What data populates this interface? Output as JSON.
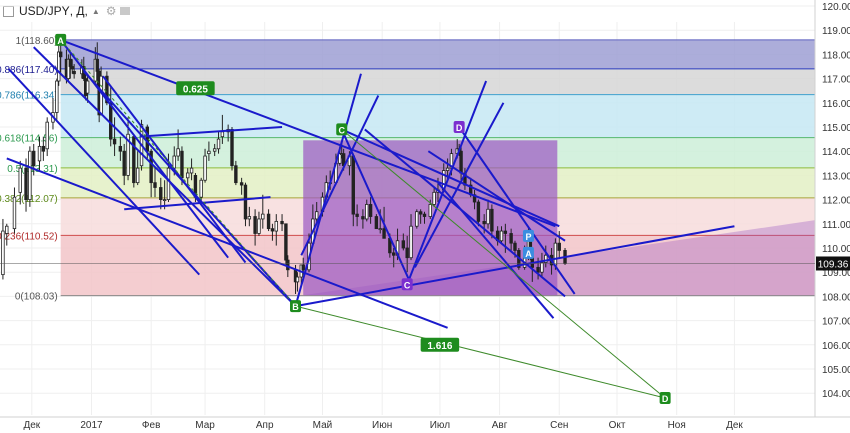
{
  "header": {
    "symbol": "USD/JPY",
    "interval": "Д",
    "icons": [
      "symbol-square-icon",
      "chevron-up-icon",
      "settings-gear-icon",
      "eye-icon"
    ]
  },
  "colors": {
    "fib_0": "#f2c4c8",
    "fib_0236": "#f7dcdc",
    "fib_0382": "#e3f0c4",
    "fib_05": "#ccefd8",
    "fib_0618": "#c6e7f3",
    "fib_0786": "#d6d6d6",
    "fib_0886": "#9d9fd4",
    "purple_zone": "#9c5ac4",
    "channel_lines": "#1a1acb",
    "projection_line": "#3d8a2a",
    "marker_green": "#1e8c1e",
    "marker_purple": "#7b2ecf",
    "marker_blue": "#3b8de0",
    "price_label_bg": "#111111"
  },
  "chart_data": {
    "type": "candlestick",
    "symbol": "USD/JPY",
    "interval": "Д",
    "ylim": [
      103.55,
      120.25
    ],
    "y_ticks": [
      "120.00",
      "119.00",
      "118.00",
      "117.00",
      "116.00",
      "115.00",
      "114.00",
      "113.00",
      "112.00",
      "111.00",
      "110.00",
      "109.00",
      "108.00",
      "107.00",
      "106.00",
      "105.00",
      "104.00"
    ],
    "x_ticks": [
      {
        "label": "Дек",
        "date": "2016-12-01"
      },
      {
        "label": "2017",
        "date": "2017-01-01"
      },
      {
        "label": "Фев",
        "date": "2017-02-01"
      },
      {
        "label": "Мар",
        "date": "2017-03-01"
      },
      {
        "label": "Апр",
        "date": "2017-04-01"
      },
      {
        "label": "Май",
        "date": "2017-05-01"
      },
      {
        "label": "Июн",
        "date": "2017-06-01"
      },
      {
        "label": "Июл",
        "date": "2017-07-01"
      },
      {
        "label": "Авг",
        "date": "2017-08-01"
      },
      {
        "label": "Сен",
        "date": "2017-09-01"
      },
      {
        "label": "Окт",
        "date": "2017-10-01"
      },
      {
        "label": "Ноя",
        "date": "2017-11-01"
      },
      {
        "label": "Дек",
        "date": "2017-12-01"
      }
    ],
    "last_price": "109.36",
    "candles": [
      [
        "2016-11-16",
        108.9,
        111.2,
        108.7,
        110.7
      ],
      [
        "2016-11-18",
        110.6,
        111.0,
        110.1,
        110.9
      ],
      [
        "2016-11-22",
        110.8,
        112.5,
        110.6,
        112.1
      ],
      [
        "2016-11-25",
        112.3,
        113.6,
        111.8,
        113.3
      ],
      [
        "2016-11-28",
        113.3,
        113.7,
        111.5,
        112.0
      ],
      [
        "2016-11-30",
        112.0,
        114.2,
        111.7,
        114.0
      ],
      [
        "2016-12-02",
        114.0,
        114.3,
        113.0,
        113.4
      ],
      [
        "2016-12-05",
        113.6,
        114.6,
        113.2,
        114.2
      ],
      [
        "2016-12-07",
        114.2,
        114.6,
        113.6,
        114.0
      ],
      [
        "2016-12-09",
        114.1,
        115.4,
        113.8,
        115.2
      ],
      [
        "2016-12-12",
        115.2,
        116.2,
        114.9,
        115.6
      ],
      [
        "2016-12-14",
        115.6,
        117.0,
        115.3,
        116.9
      ],
      [
        "2016-12-15",
        116.9,
        118.6,
        116.7,
        118.1
      ],
      [
        "2016-12-16",
        118.1,
        118.4,
        117.2,
        117.9
      ],
      [
        "2016-12-19",
        117.8,
        118.2,
        116.8,
        117.0
      ],
      [
        "2016-12-20",
        117.0,
        118.0,
        116.9,
        117.8
      ],
      [
        "2016-12-21",
        117.8,
        118.1,
        117.0,
        117.5
      ],
      [
        "2016-12-22",
        117.5,
        117.8,
        117.2,
        117.4
      ],
      [
        "2016-12-23",
        117.3,
        117.6,
        117.0,
        117.2
      ],
      [
        "2016-12-27",
        117.2,
        117.8,
        117.0,
        117.5
      ],
      [
        "2016-12-28",
        117.5,
        117.9,
        116.9,
        117.0
      ],
      [
        "2016-12-29",
        117.0,
        117.2,
        116.1,
        116.3
      ],
      [
        "2016-12-30",
        116.4,
        117.2,
        116.0,
        116.9
      ],
      [
        "2017-01-03",
        116.9,
        118.3,
        116.8,
        117.8
      ],
      [
        "2017-01-04",
        117.8,
        118.5,
        116.7,
        117.3
      ],
      [
        "2017-01-05",
        117.3,
        117.4,
        115.2,
        115.5
      ],
      [
        "2017-01-06",
        115.5,
        117.5,
        115.5,
        117.1
      ],
      [
        "2017-01-09",
        117.1,
        117.3,
        115.9,
        116.0
      ],
      [
        "2017-01-11",
        116.0,
        116.7,
        114.2,
        114.5
      ],
      [
        "2017-01-13",
        114.5,
        115.4,
        113.8,
        114.3
      ],
      [
        "2017-01-16",
        114.2,
        114.6,
        113.6,
        114.0
      ],
      [
        "2017-01-18",
        114.0,
        114.3,
        112.6,
        113.0
      ],
      [
        "2017-01-20",
        113.0,
        115.4,
        112.8,
        114.7
      ],
      [
        "2017-01-23",
        114.6,
        114.7,
        112.5,
        112.7
      ],
      [
        "2017-01-25",
        112.7,
        114.0,
        112.6,
        113.3
      ],
      [
        "2017-01-27",
        113.4,
        115.3,
        113.2,
        115.1
      ],
      [
        "2017-01-30",
        115.0,
        115.1,
        113.7,
        114.0
      ],
      [
        "2017-02-01",
        114.0,
        114.1,
        112.1,
        112.7
      ],
      [
        "2017-02-03",
        112.7,
        113.3,
        112.1,
        112.5
      ],
      [
        "2017-02-06",
        112.5,
        112.9,
        111.6,
        112.0
      ],
      [
        "2017-02-08",
        112.0,
        112.8,
        111.6,
        112.0
      ],
      [
        "2017-02-10",
        112.0,
        113.9,
        111.9,
        113.3
      ],
      [
        "2017-02-13",
        113.3,
        114.2,
        113.0,
        113.8
      ],
      [
        "2017-02-15",
        113.8,
        114.9,
        113.6,
        114.1
      ],
      [
        "2017-02-17",
        114.0,
        114.2,
        112.6,
        112.9
      ],
      [
        "2017-02-20",
        112.9,
        113.3,
        112.6,
        113.1
      ],
      [
        "2017-02-22",
        113.1,
        113.7,
        112.8,
        113.3
      ],
      [
        "2017-02-24",
        113.0,
        113.1,
        111.9,
        112.1
      ],
      [
        "2017-02-27",
        112.1,
        112.9,
        111.9,
        112.8
      ],
      [
        "2017-03-01",
        112.8,
        114.1,
        112.7,
        113.8
      ],
      [
        "2017-03-03",
        113.9,
        114.4,
        113.6,
        114.0
      ],
      [
        "2017-03-06",
        114.0,
        114.3,
        113.8,
        114.1
      ],
      [
        "2017-03-08",
        114.1,
        114.8,
        113.9,
        114.5
      ],
      [
        "2017-03-10",
        114.6,
        115.5,
        114.3,
        114.8
      ],
      [
        "2017-03-13",
        114.8,
        115.1,
        114.4,
        114.9
      ],
      [
        "2017-03-15",
        114.9,
        115.0,
        113.2,
        113.4
      ],
      [
        "2017-03-17",
        113.4,
        113.6,
        112.6,
        112.7
      ],
      [
        "2017-03-20",
        112.7,
        112.9,
        112.2,
        112.6
      ],
      [
        "2017-03-22",
        112.6,
        112.7,
        110.9,
        111.2
      ],
      [
        "2017-03-24",
        111.2,
        111.7,
        110.9,
        111.3
      ],
      [
        "2017-03-27",
        111.3,
        111.6,
        110.1,
        110.6
      ],
      [
        "2017-03-29",
        110.6,
        111.5,
        110.5,
        111.2
      ],
      [
        "2017-03-31",
        111.2,
        112.2,
        110.8,
        111.4
      ],
      [
        "2017-04-03",
        111.4,
        111.6,
        110.7,
        110.8
      ],
      [
        "2017-04-05",
        110.8,
        111.0,
        110.3,
        110.7
      ],
      [
        "2017-04-07",
        110.7,
        111.4,
        110.1,
        111.1
      ],
      [
        "2017-04-10",
        111.1,
        111.4,
        110.7,
        111.0
      ],
      [
        "2017-04-12",
        111.0,
        111.0,
        109.3,
        109.5
      ],
      [
        "2017-04-13",
        109.5,
        109.7,
        108.8,
        109.1
      ],
      [
        "2017-04-17",
        109.1,
        109.3,
        108.1,
        108.6
      ],
      [
        "2017-04-18",
        108.6,
        109.0,
        108.2,
        108.8
      ],
      [
        "2017-04-20",
        108.8,
        109.3,
        108.5,
        109.3
      ],
      [
        "2017-04-21",
        109.3,
        109.6,
        108.9,
        109.1
      ],
      [
        "2017-04-24",
        109.1,
        110.6,
        109.0,
        110.2
      ],
      [
        "2017-04-26",
        110.2,
        111.8,
        110.1,
        111.2
      ],
      [
        "2017-04-28",
        111.2,
        111.9,
        111.0,
        111.5
      ],
      [
        "2017-05-01",
        111.5,
        112.3,
        111.3,
        112.1
      ],
      [
        "2017-05-03",
        112.1,
        113.0,
        112.0,
        112.7
      ],
      [
        "2017-05-05",
        112.7,
        113.2,
        112.4,
        112.7
      ],
      [
        "2017-05-08",
        112.7,
        113.9,
        112.6,
        113.5
      ],
      [
        "2017-05-10",
        113.5,
        114.2,
        113.4,
        113.9
      ],
      [
        "2017-05-11",
        113.9,
        114.4,
        113.7,
        113.9
      ],
      [
        "2017-05-12",
        113.9,
        114.1,
        113.2,
        113.4
      ],
      [
        "2017-05-15",
        113.4,
        114.0,
        113.0,
        113.8
      ],
      [
        "2017-05-17",
        113.8,
        113.9,
        110.9,
        111.4
      ],
      [
        "2017-05-19",
        111.4,
        111.8,
        110.9,
        111.3
      ],
      [
        "2017-05-22",
        111.3,
        111.6,
        110.8,
        111.2
      ],
      [
        "2017-05-24",
        111.2,
        112.0,
        111.1,
        111.8
      ],
      [
        "2017-05-26",
        111.8,
        112.1,
        111.0,
        111.3
      ],
      [
        "2017-05-29",
        111.3,
        111.4,
        110.8,
        110.8
      ],
      [
        "2017-05-31",
        110.8,
        111.6,
        110.6,
        110.8
      ],
      [
        "2017-06-02",
        110.8,
        111.7,
        110.5,
        110.4
      ],
      [
        "2017-06-05",
        110.4,
        110.6,
        109.6,
        109.8
      ],
      [
        "2017-06-07",
        109.8,
        110.0,
        109.2,
        109.7
      ],
      [
        "2017-06-09",
        109.7,
        110.8,
        109.5,
        110.3
      ],
      [
        "2017-06-12",
        110.3,
        110.6,
        109.9,
        110.0
      ],
      [
        "2017-06-14",
        110.0,
        110.5,
        109.0,
        109.6
      ],
      [
        "2017-06-16",
        109.6,
        111.4,
        109.5,
        110.9
      ],
      [
        "2017-06-19",
        110.9,
        111.6,
        110.8,
        111.5
      ],
      [
        "2017-06-21",
        111.5,
        111.6,
        111.0,
        111.4
      ],
      [
        "2017-06-23",
        111.4,
        111.5,
        111.0,
        111.3
      ],
      [
        "2017-06-26",
        111.3,
        112.0,
        111.2,
        111.8
      ],
      [
        "2017-06-28",
        111.8,
        112.5,
        111.7,
        112.3
      ],
      [
        "2017-06-30",
        112.3,
        112.9,
        111.9,
        112.4
      ],
      [
        "2017-07-03",
        112.4,
        113.5,
        112.3,
        113.2
      ],
      [
        "2017-07-05",
        113.2,
        113.7,
        112.8,
        113.3
      ],
      [
        "2017-07-07",
        113.3,
        114.1,
        113.0,
        113.9
      ],
      [
        "2017-07-10",
        113.9,
        114.5,
        113.7,
        114.1
      ],
      [
        "2017-07-11",
        114.1,
        114.3,
        113.8,
        114.0
      ],
      [
        "2017-07-12",
        114.0,
        114.2,
        112.8,
        113.1
      ],
      [
        "2017-07-14",
        113.1,
        113.3,
        112.4,
        112.6
      ],
      [
        "2017-07-17",
        112.6,
        112.9,
        112.1,
        112.2
      ],
      [
        "2017-07-19",
        112.2,
        112.4,
        111.6,
        111.9
      ],
      [
        "2017-07-21",
        111.9,
        112.0,
        110.9,
        111.1
      ],
      [
        "2017-07-24",
        111.1,
        111.4,
        110.6,
        111.0
      ],
      [
        "2017-07-26",
        111.0,
        112.0,
        110.8,
        111.6
      ],
      [
        "2017-07-28",
        111.6,
        111.8,
        110.4,
        110.7
      ],
      [
        "2017-07-31",
        110.7,
        110.9,
        110.1,
        110.3
      ],
      [
        "2017-08-02",
        110.3,
        110.9,
        110.2,
        110.7
      ],
      [
        "2017-08-04",
        110.7,
        111.0,
        109.8,
        110.6
      ],
      [
        "2017-08-07",
        110.6,
        110.8,
        109.9,
        110.2
      ],
      [
        "2017-08-09",
        110.2,
        110.3,
        109.6,
        109.9
      ],
      [
        "2017-08-11",
        109.9,
        110.0,
        109.1,
        109.2
      ],
      [
        "2017-08-14",
        109.2,
        110.1,
        109.1,
        109.6
      ],
      [
        "2017-08-16",
        109.6,
        110.9,
        109.5,
        110.6
      ],
      [
        "2017-08-17",
        110.6,
        110.7,
        109.5,
        109.6
      ],
      [
        "2017-08-18",
        109.6,
        109.7,
        108.6,
        109.2
      ],
      [
        "2017-08-21",
        109.2,
        109.6,
        108.7,
        109.0
      ],
      [
        "2017-08-23",
        109.0,
        109.8,
        108.8,
        109.4
      ],
      [
        "2017-08-25",
        109.4,
        110.1,
        109.2,
        109.7
      ],
      [
        "2017-08-28",
        109.7,
        110.0,
        108.9,
        109.3
      ],
      [
        "2017-08-30",
        109.3,
        110.4,
        109.1,
        110.2
      ],
      [
        "2017-09-01",
        110.2,
        110.7,
        109.6,
        109.9
      ],
      [
        "2017-09-04",
        109.9,
        110.0,
        109.3,
        109.36
      ]
    ],
    "fibonacci": {
      "levels": [
        {
          "ratio": "1",
          "price": "118.60",
          "label": "1(118.60)"
        },
        {
          "ratio": "0.886",
          "price": "117.40",
          "label": "0.886(117.40)"
        },
        {
          "ratio": "0.786",
          "price": "116.34",
          "label": "0.786(116.34)"
        },
        {
          "ratio": "0.618",
          "price": "114.56",
          "label": "0.618(114.56)"
        },
        {
          "ratio": "0.5",
          "price": "113.31",
          "label": "0.5(113.31)"
        },
        {
          "ratio": "0.382",
          "price": "112.07",
          "label": "0.382(112.07)"
        },
        {
          "ratio": "0.236",
          "price": "110.52",
          "label": "0.236(110.52)"
        },
        {
          "ratio": "0",
          "price": "108.03",
          "label": "0(108.03)"
        }
      ]
    },
    "pattern_points": [
      {
        "label": "A",
        "date": "2016-12-16",
        "price": 118.6,
        "color": "green"
      },
      {
        "label": "B",
        "date": "2017-04-17",
        "price": 107.6,
        "color": "green"
      },
      {
        "label": "C",
        "date": "2017-05-11",
        "price": 114.9,
        "color": "green"
      },
      {
        "label": "C",
        "date": "2017-06-14",
        "price": 108.5,
        "color": "purple"
      },
      {
        "label": "D",
        "date": "2017-07-11",
        "price": 115.0,
        "color": "purple"
      },
      {
        "label": "D",
        "date": "2017-10-26",
        "price": 103.8,
        "color": "green"
      },
      {
        "label": "P",
        "date": "2017-08-16",
        "price": 110.5,
        "color": "blue"
      },
      {
        "label": "A",
        "date": "2017-08-16",
        "price": 109.8,
        "color": "blue"
      }
    ],
    "ratio_labels": [
      {
        "text": "0.625",
        "date": "2017-02-24",
        "price": 116.6
      },
      {
        "text": "1.616",
        "date": "2017-07-01",
        "price": 106.0
      }
    ]
  }
}
